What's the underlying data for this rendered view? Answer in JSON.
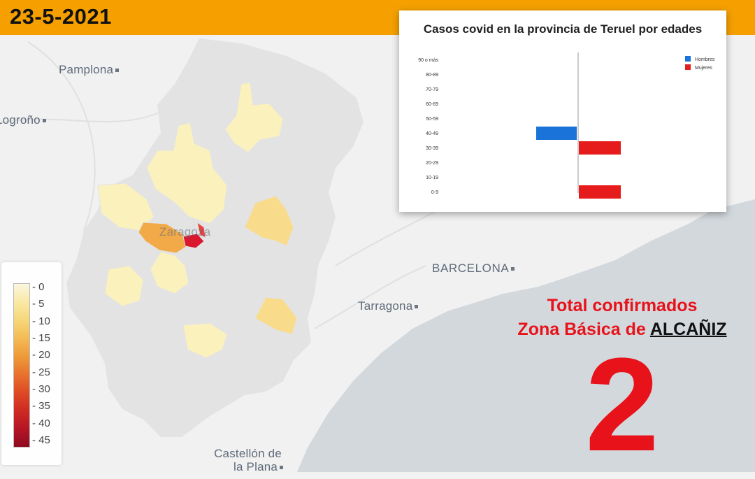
{
  "header": {
    "date": "23-5-2021"
  },
  "map": {
    "cities": [
      "Pamplona",
      "Logroño",
      "BARCELONA",
      "Tarragona",
      "Castellón de",
      "la Plana",
      "Zaragoza"
    ],
    "legend": {
      "ticks": [
        "0",
        "5",
        "10",
        "15",
        "20",
        "25",
        "30",
        "35",
        "40",
        "45"
      ],
      "colors": [
        "#fbf6e0",
        "#f9e9a6",
        "#f6d77a",
        "#f4bb56",
        "#ee9a3a",
        "#e8722d",
        "#de4a26",
        "#cf2a22",
        "#b51525",
        "#8f0a1f"
      ]
    }
  },
  "chart_data": {
    "type": "bar",
    "orientation": "horizontal",
    "title": "Casos covid en la provincia de Teruel por edades",
    "categories": [
      "90 o más",
      "80-89",
      "70-79",
      "60-69",
      "50-59",
      "40-49",
      "30-39",
      "20-29",
      "10-19",
      "0-9"
    ],
    "series": [
      {
        "name": "Hombres",
        "color": "#1a73d8",
        "values": [
          0,
          0,
          0,
          0,
          0,
          1,
          0,
          0,
          0,
          0
        ]
      },
      {
        "name": "Mujeres",
        "color": "#e61b1b",
        "values": [
          0,
          0,
          0,
          0,
          0,
          0,
          1,
          0,
          0,
          1
        ]
      }
    ],
    "legend": "top-right",
    "grid": false
  },
  "summary": {
    "line1": "Total confirmados",
    "line2_prefix": "Zona Básica de ",
    "zone": "ALCAÑIZ",
    "total": "2"
  }
}
